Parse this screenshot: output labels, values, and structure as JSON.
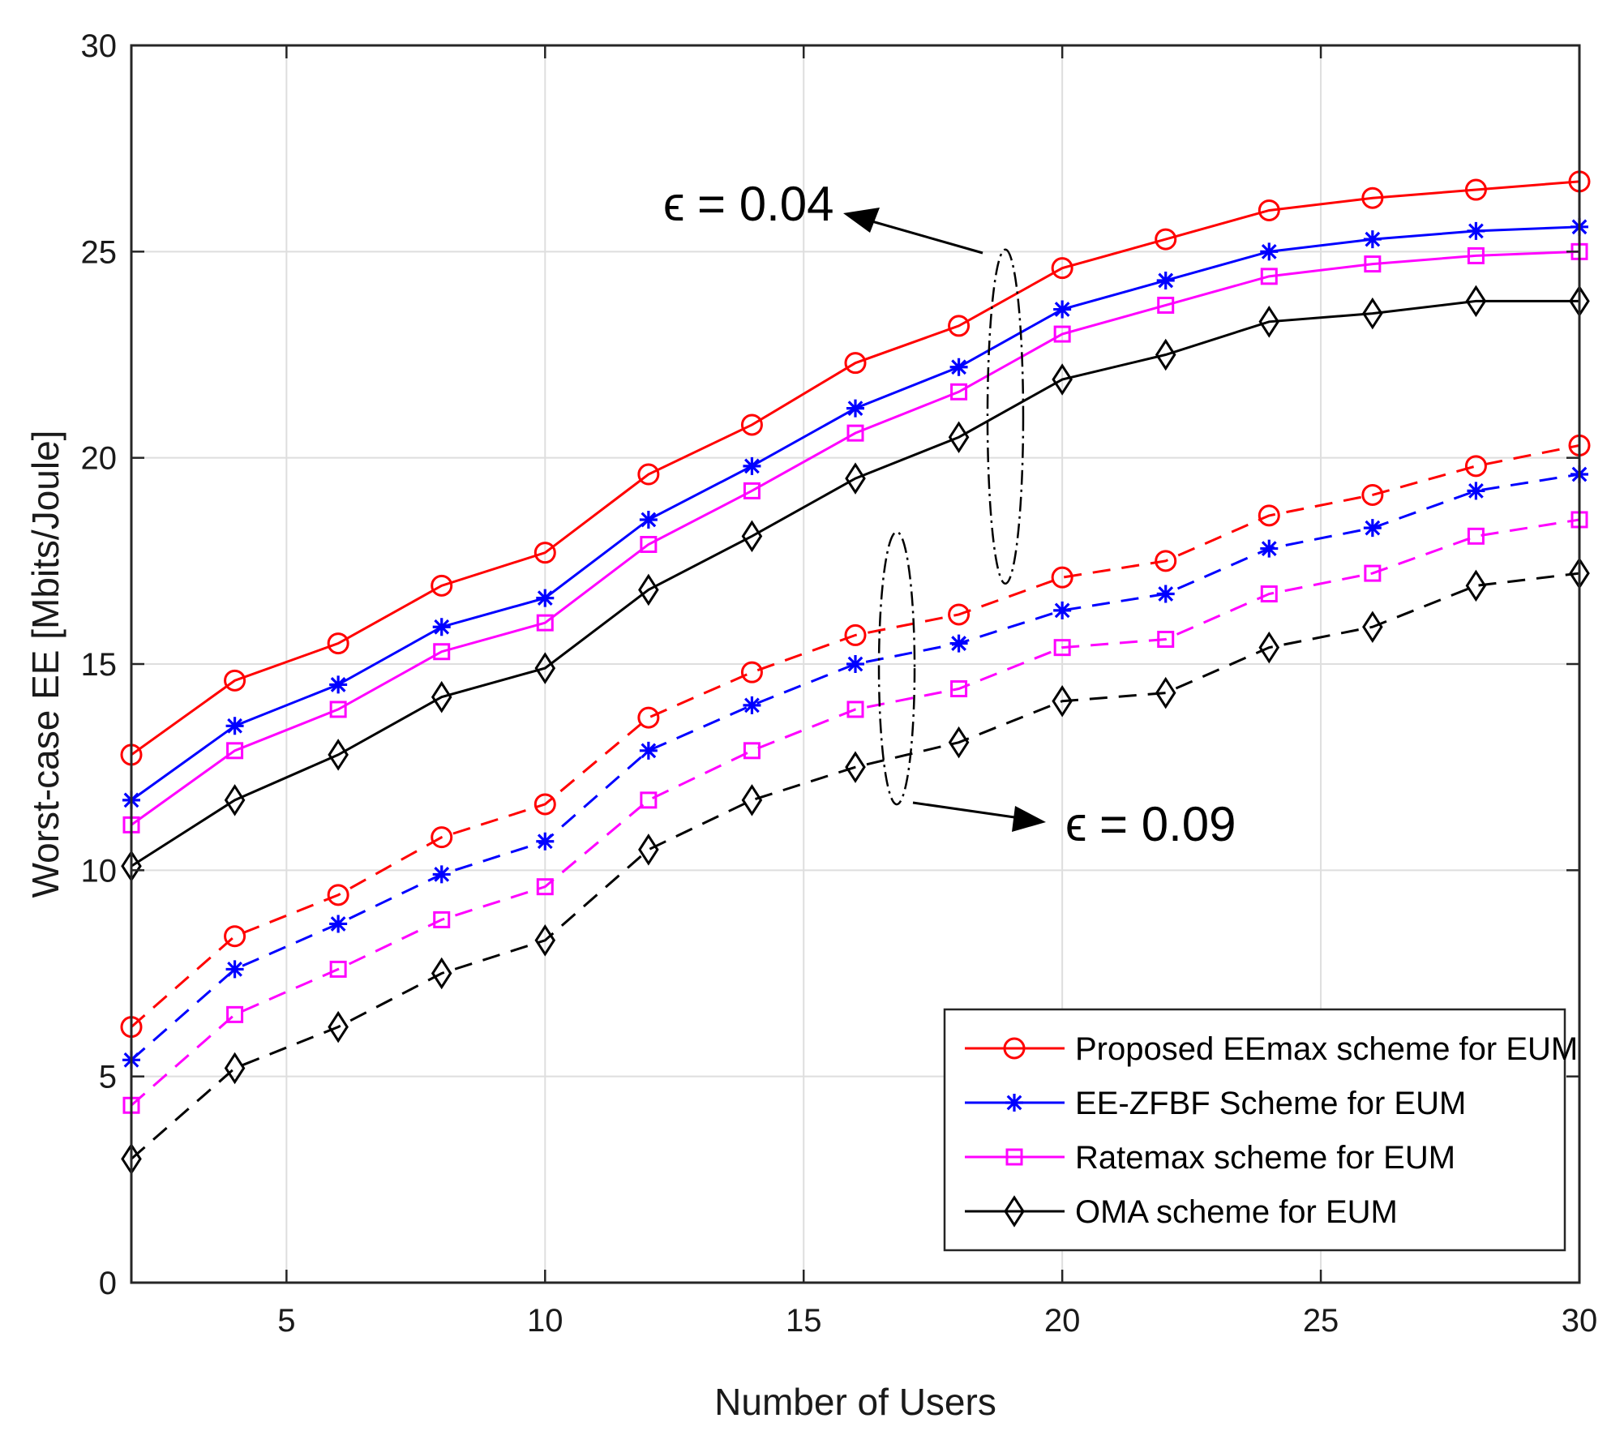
{
  "chart_data": {
    "type": "line",
    "title": "",
    "xlabel": "Number of Users",
    "ylabel": "Worst-case EE [Mbits/Joule]",
    "xlim": [
      2,
      30
    ],
    "ylim": [
      0,
      30
    ],
    "xticks": [
      5,
      10,
      15,
      20,
      25,
      30
    ],
    "yticks": [
      0,
      5,
      10,
      15,
      20,
      25,
      30
    ],
    "grid": true,
    "legend_position": "bottom-right",
    "x": [
      2,
      4,
      6,
      8,
      10,
      12,
      14,
      16,
      18,
      20,
      22,
      24,
      26,
      28,
      30
    ],
    "series": [
      {
        "name": "Proposed EEmax scheme for EUM",
        "epsilon": "0.04",
        "style": "solid",
        "marker": "circle",
        "color": "#ff0000",
        "values": [
          12.8,
          14.6,
          15.5,
          16.9,
          17.7,
          19.6,
          20.8,
          22.3,
          23.2,
          24.6,
          25.3,
          26.0,
          26.3,
          26.5,
          26.7
        ],
        "in_legend": true
      },
      {
        "name": "EE-ZFBF Scheme for EUM",
        "epsilon": "0.04",
        "style": "solid",
        "marker": "asterisk",
        "color": "#0000ff",
        "values": [
          11.7,
          13.5,
          14.5,
          15.9,
          16.6,
          18.5,
          19.8,
          21.2,
          22.2,
          23.6,
          24.3,
          25.0,
          25.3,
          25.5,
          25.6
        ],
        "in_legend": true
      },
      {
        "name": "Ratemax scheme for EUM",
        "epsilon": "0.04",
        "style": "solid",
        "marker": "square",
        "color": "#ff00ff",
        "values": [
          11.1,
          12.9,
          13.9,
          15.3,
          16.0,
          17.9,
          19.2,
          20.6,
          21.6,
          23.0,
          23.7,
          24.4,
          24.7,
          24.9,
          25.0
        ],
        "in_legend": true
      },
      {
        "name": "OMA scheme for EUM",
        "epsilon": "0.04",
        "style": "solid",
        "marker": "diamond",
        "color": "#000000",
        "values": [
          10.1,
          11.7,
          12.8,
          14.2,
          14.9,
          16.8,
          18.1,
          19.5,
          20.5,
          21.9,
          22.5,
          23.3,
          23.5,
          23.8,
          23.8
        ],
        "in_legend": true
      },
      {
        "name": "Proposed EEmax scheme for EUM",
        "epsilon": "0.09",
        "style": "dashed",
        "marker": "circle",
        "color": "#ff0000",
        "values": [
          6.2,
          8.4,
          9.4,
          10.8,
          11.6,
          13.7,
          14.8,
          15.7,
          16.2,
          17.1,
          17.5,
          18.6,
          19.1,
          19.8,
          20.3
        ],
        "in_legend": false
      },
      {
        "name": "EE-ZFBF Scheme for EUM",
        "epsilon": "0.09",
        "style": "dashed",
        "marker": "asterisk",
        "color": "#0000ff",
        "values": [
          5.4,
          7.6,
          8.7,
          9.9,
          10.7,
          12.9,
          14.0,
          15.0,
          15.5,
          16.3,
          16.7,
          17.8,
          18.3,
          19.2,
          19.6
        ],
        "in_legend": false
      },
      {
        "name": "Ratemax scheme for EUM",
        "epsilon": "0.09",
        "style": "dashed",
        "marker": "square",
        "color": "#ff00ff",
        "values": [
          4.3,
          6.5,
          7.6,
          8.8,
          9.6,
          11.7,
          12.9,
          13.9,
          14.4,
          15.4,
          15.6,
          16.7,
          17.2,
          18.1,
          18.5
        ],
        "in_legend": false
      },
      {
        "name": "OMA scheme for EUM",
        "epsilon": "0.09",
        "style": "dashed",
        "marker": "diamond",
        "color": "#000000",
        "values": [
          3.0,
          5.2,
          6.2,
          7.5,
          8.3,
          10.5,
          11.7,
          12.5,
          13.1,
          14.1,
          14.3,
          15.4,
          15.9,
          16.9,
          17.2
        ],
        "in_legend": false
      }
    ],
    "annotations": [
      {
        "symbol": "ϵ",
        "text": "= 0.04",
        "ellipse_center": [
          18.9,
          21.0
        ]
      },
      {
        "symbol": "ϵ",
        "text": "= 0.09",
        "ellipse_center": [
          16.8,
          14.9
        ]
      }
    ]
  }
}
